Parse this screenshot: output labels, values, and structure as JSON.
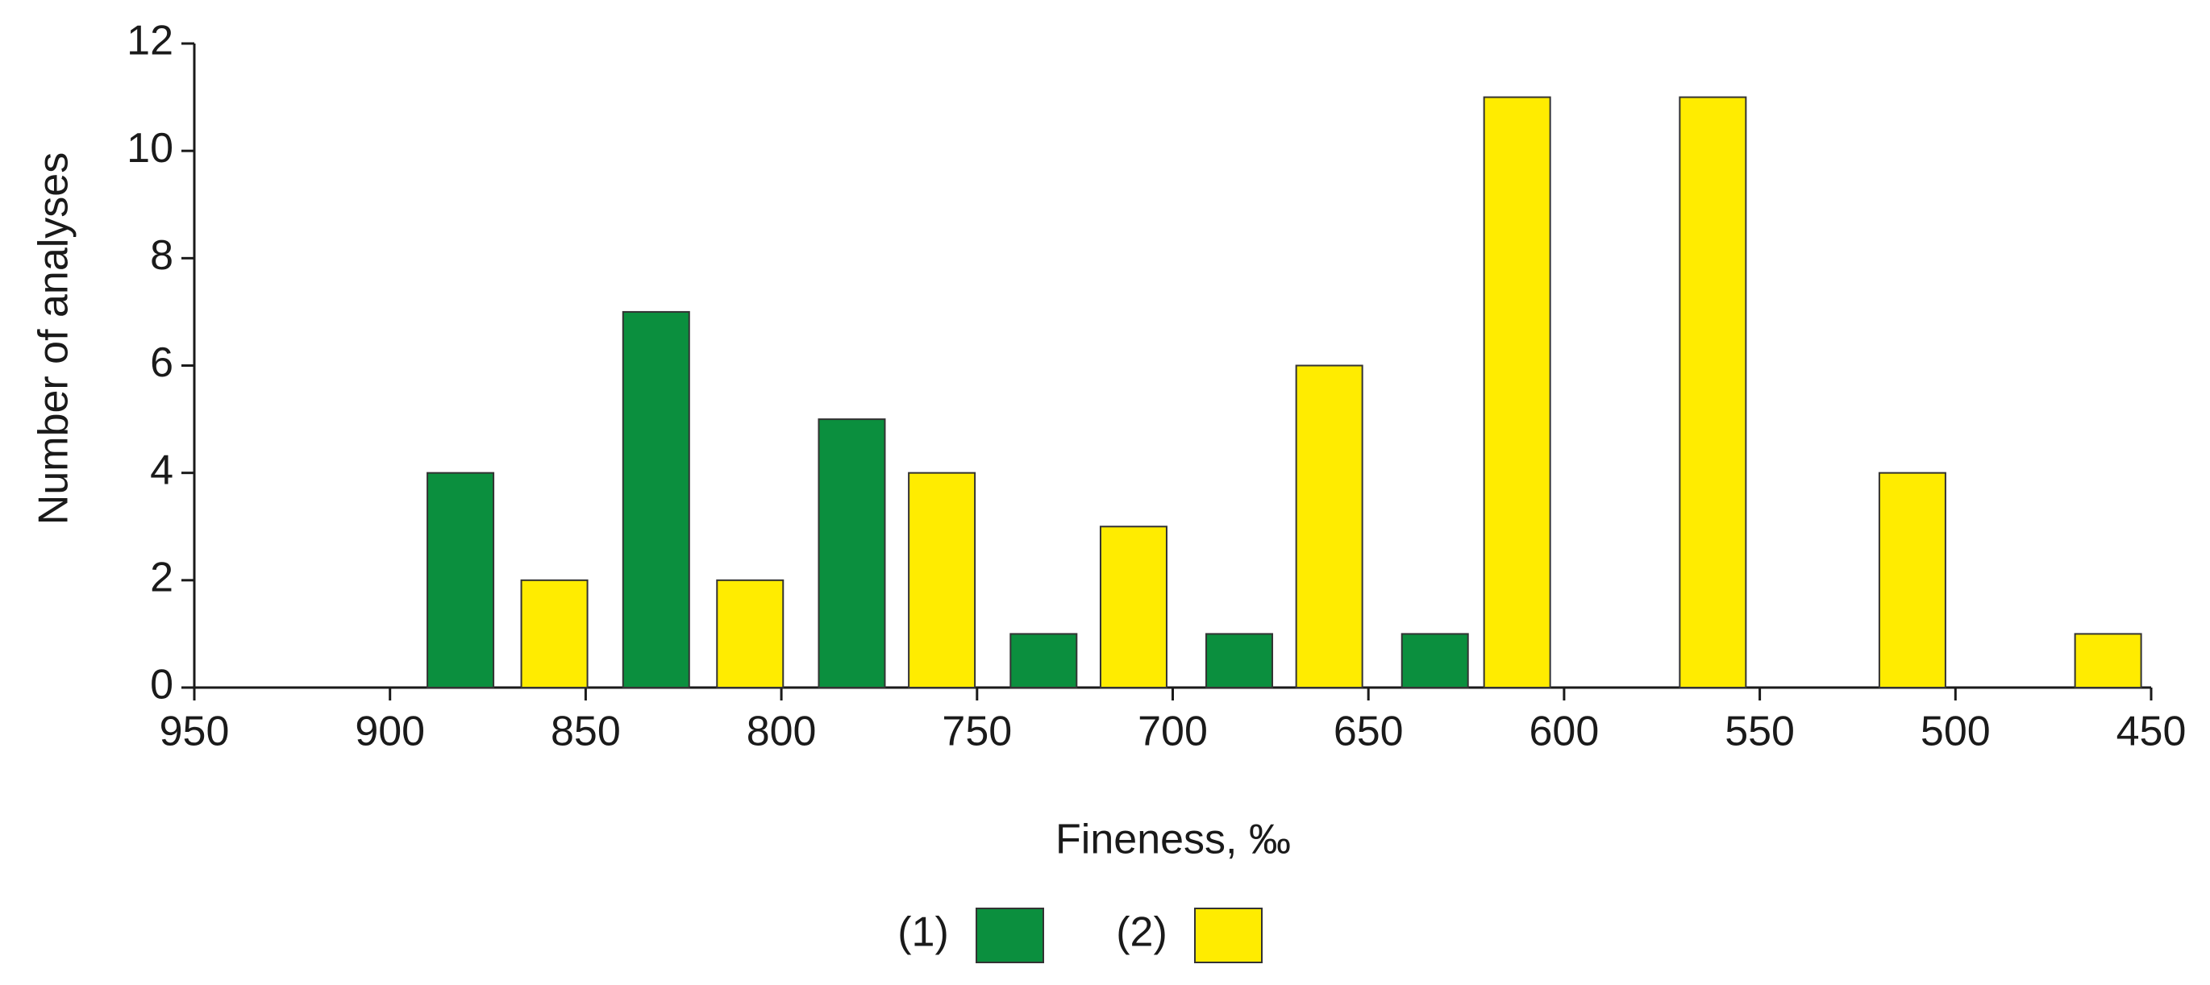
{
  "chart_data": {
    "type": "bar",
    "x_label": "Fineness, ‰",
    "y_label": "Number of analyses",
    "xlim": [
      950,
      450
    ],
    "xticks": [
      950,
      900,
      850,
      800,
      750,
      700,
      650,
      600,
      550,
      500,
      450
    ],
    "ylim": [
      0,
      12
    ],
    "yticks": [
      0,
      2,
      4,
      6,
      8,
      10,
      12
    ],
    "grid": false,
    "legend": "bottom",
    "series": [
      {
        "name": "(1)",
        "color": "#0b8f3e",
        "x": [
          882,
          832,
          782,
          733,
          683,
          633
        ],
        "values": [
          4,
          7,
          5,
          1,
          1,
          1
        ]
      },
      {
        "name": "(2)",
        "color": "#ffec00",
        "x": [
          858,
          808,
          759,
          710,
          660,
          612,
          562,
          511,
          461
        ],
        "values": [
          2,
          2,
          4,
          3,
          6,
          11,
          11,
          4,
          1
        ]
      }
    ]
  }
}
